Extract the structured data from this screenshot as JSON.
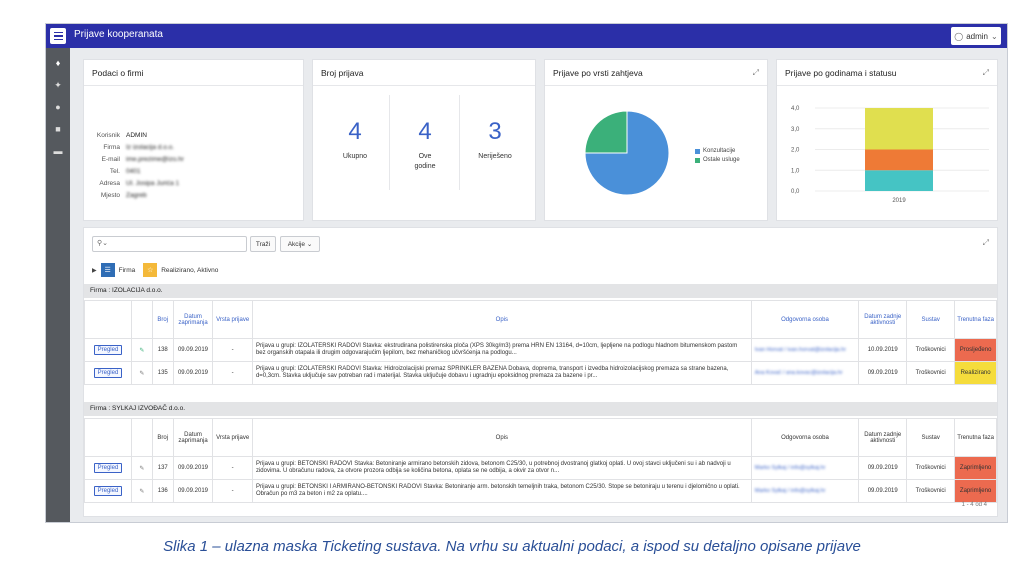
{
  "app": {
    "title": "Prijave kooperanata",
    "user": "admin"
  },
  "sidebar": {
    "icons": [
      "bell-icon",
      "wrench-icon",
      "users-icon",
      "folder-icon",
      "book-icon"
    ]
  },
  "firm_card": {
    "title": "Podaci o firmi",
    "rows": [
      {
        "label": "Korisnik",
        "value": "ADMIN",
        "blur": false
      },
      {
        "label": "Firma",
        "value": "Iz izolacija d.o.o.",
        "blur": true
      },
      {
        "label": "E-mail",
        "value": "ime.prezime@izo.hr",
        "blur": true
      },
      {
        "label": "Tel.",
        "value": "0401",
        "blur": true
      },
      {
        "label": "Adresa",
        "value": "Ul. Josipa Jurića 1",
        "blur": true
      },
      {
        "label": "Mjesto",
        "value": "Zagreb",
        "blur": true
      }
    ]
  },
  "count_card": {
    "title": "Broj prijava",
    "stats": [
      {
        "value": "4",
        "label": "Ukupno"
      },
      {
        "value": "4",
        "label": "Ove godine"
      },
      {
        "value": "3",
        "label": "Neriješeno"
      }
    ]
  },
  "pie_card": {
    "title": "Prijave po vrsti zahtjeva",
    "chart_data": {
      "type": "pie",
      "slices": [
        {
          "name": "Konzultacije",
          "value": 75,
          "color": "#4a90d9"
        },
        {
          "name": "Ostale usluge",
          "value": 25,
          "color": "#3bb07a"
        }
      ]
    }
  },
  "bar_card": {
    "title": "Prijave po godinama i statusu",
    "chart_data": {
      "type": "bar",
      "stacked": true,
      "categories": [
        "2019"
      ],
      "y_ticks": [
        "4,0",
        "3,0",
        "2,0",
        "1,0",
        "0,0"
      ],
      "ylim": [
        0,
        4
      ],
      "series": [
        {
          "values": [
            1
          ],
          "color": "#45c4c4"
        },
        {
          "values": [
            1
          ],
          "color": "#ee7a36"
        },
        {
          "values": [
            2
          ],
          "color": "#e0df4f"
        }
      ]
    }
  },
  "report": {
    "search_placeholder": "",
    "go_label": "Traži",
    "actions_label": "Akcije",
    "filter_chips": [
      {
        "text": "Firma",
        "color": "#2f6db5"
      },
      {
        "text": "Realizirano, Aktivno",
        "color": "#f4b93a"
      }
    ],
    "columns": [
      "",
      "",
      "Broj",
      "Datum zaprimanja",
      "Vrsta prijave",
      "Opis",
      "Odgovorna osoba",
      "Datum zadnje aktivnosti",
      "Sustav",
      "Trenutna faza"
    ],
    "groups": [
      {
        "title": "Firma : IZOLACIJA d.o.o.",
        "rows": [
          {
            "btn": "Pregled",
            "broj": "138",
            "datum": "09.09.2019",
            "vrsta": "-",
            "opis": "Prijava u grupi: IZOLATERSKI RADOVI Stavka: ekstrudirana polistirenska ploča (XPS 30kg/m3) prema HRN EN 13164, d=10cm, ljepljene na podlogu hladnom bitumenskom pastom bez organskih otapala ili drugim odgovarajućim ljepilom, bez mehaničkog učvršćenja na podlogu...",
            "osoba": "Ivan Horvat / ivan.horvat@izolacija.hr",
            "zadnja": "10.09.2019",
            "sustav": "Troškovnici",
            "faza": "Prosljeđeno",
            "faza_color": "#ec6a4f"
          },
          {
            "btn": "Pregled",
            "broj": "135",
            "datum": "09.09.2019",
            "vrsta": "-",
            "opis": "Prijava u grupi: IZOLATERSKI RADOVI Stavka: Hidroizolacijski premaz SPRINKLER BAZENA Dobava, doprema, transport i izvedba hidroizolacijskog premaza sa strane bazena, d=0,3cm. Stavka uključuje sav potreban rad i materijal. Stavka uključuje dobavu i ugradnju epoksidnog premaza za bazene i pr...",
            "osoba": "Ana Kovač / ana.kovac@izolacija.hr",
            "zadnja": "09.09.2019",
            "sustav": "Troškovnici",
            "faza": "Realizirano",
            "faza_color": "#f5dc3c"
          }
        ]
      },
      {
        "title": "Firma : SYLKAJ IZVOĐAČ d.o.o.",
        "rows": [
          {
            "btn": "Pregled",
            "broj": "137",
            "datum": "09.09.2019",
            "vrsta": "-",
            "opis": "Prijava u grupi: BETONSKI RADOVI Stavka: Betoniranje armirano betonskih zidova, betonom C25/30, u potrebnoj dvostranoj glatkoj oplati. U ovoj stavci uključeni su i ab nadvoji u zidovima. U obračunu radova, za otvore prozora odbija se količina betona, oplata se ne odbija, a okvir za otvor n...",
            "osoba": "Marko Sylkaj / info@sylkaj.hr",
            "zadnja": "09.09.2019",
            "sustav": "Troškovnici",
            "faza": "Zaprimljeno",
            "faza_color": "#ec6a4f"
          },
          {
            "btn": "Pregled",
            "broj": "136",
            "datum": "09.09.2019",
            "vrsta": "-",
            "opis": "Prijava u grupi: BETONSKI I ARMIRANO-BETONSKI RADOVI Stavka: Betoniranje arm. betonskih temeljnih traka, betonom C25/30. Stope se betoniraju u terenu i djelomično u oplati. Obračun po m3 za beton i m2 za oplatu....",
            "osoba": "Marko Sylkaj / info@sylkaj.hr",
            "zadnja": "09.09.2019",
            "sustav": "Troškovnici",
            "faza": "Zaprimljeno",
            "faza_color": "#ec6a4f"
          }
        ]
      }
    ],
    "pagination": "1 - 4 od 4"
  },
  "caption": "Slika 1 – ulazna maska Ticketing sustava. Na vrhu su aktualni podaci, a ispod su detaljno opisane prijave"
}
